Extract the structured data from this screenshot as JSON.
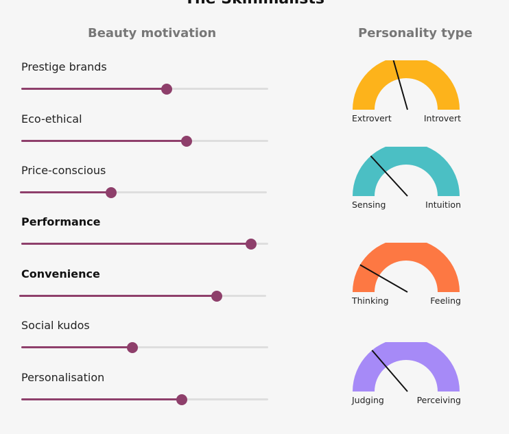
{
  "title": "The Skinimalists",
  "headings": {
    "left": "Beauty motivation",
    "right": "Personality type"
  },
  "colors": {
    "slider": "#8e3f6b",
    "track": "#dedede",
    "gauge_extrovert": "#fdb31b",
    "gauge_sensing": "#4bbfc4",
    "gauge_thinking": "#fd7843",
    "gauge_judging": "#a68af7"
  },
  "chart_data": [
    {
      "type": "slider",
      "range": [
        0,
        1
      ],
      "items": [
        {
          "label": "Prestige brands",
          "value": 0.59,
          "bold": false
        },
        {
          "label": "Eco-ethical",
          "value": 0.67,
          "bold": false
        },
        {
          "label": "Price-conscious",
          "value": 0.37,
          "bold": false
        },
        {
          "label": "Performance",
          "value": 0.93,
          "bold": true
        },
        {
          "label": "Convenience",
          "value": 0.8,
          "bold": true
        },
        {
          "label": "Social kudos",
          "value": 0.45,
          "bold": false
        },
        {
          "label": "Personalisation",
          "value": 0.65,
          "bold": false
        }
      ]
    },
    {
      "type": "gauge",
      "range": [
        0,
        1
      ],
      "items": [
        {
          "left_label": "Extrovert",
          "right_label": "Introvert",
          "value": 0.42,
          "color": "#fdb31b"
        },
        {
          "left_label": "Sensing",
          "right_label": "Intuition",
          "value": 0.27,
          "color": "#4bbfc4"
        },
        {
          "left_label": "Thinking",
          "right_label": "Feeling",
          "value": 0.17,
          "color": "#fd7843"
        },
        {
          "left_label": "Judging",
          "right_label": "Perceiving",
          "value": 0.28,
          "color": "#a68af7"
        }
      ]
    }
  ]
}
